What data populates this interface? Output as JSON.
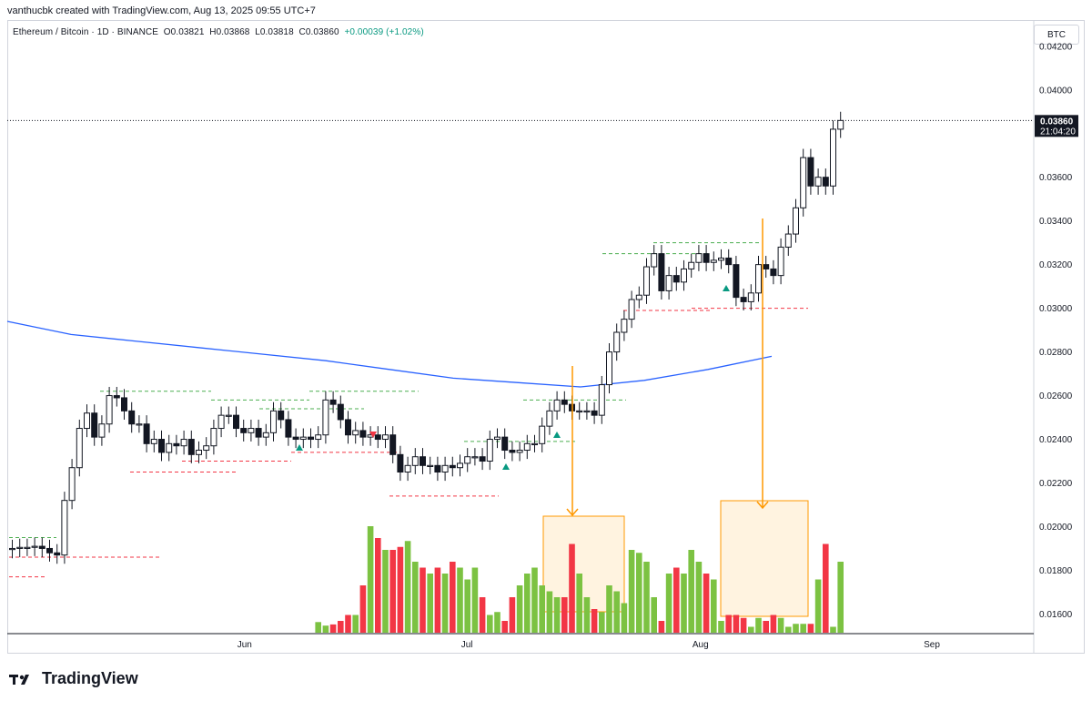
{
  "attribution": "vanthucbk created with TradingView.com, Aug 13, 2025 09:55 UTC+7",
  "legend": {
    "symbol": "Ethereum / Bitcoin · 1D · BINANCE",
    "open": "O0.03821",
    "high": "H0.03868",
    "low": "L0.03818",
    "close": "C0.03860",
    "change": "+0.00039 (+1.02%)"
  },
  "currency": "BTC",
  "brand": {
    "name": "TradingView",
    "icon": "tradingview-logo-icon"
  },
  "last_price": {
    "value": "0.03860",
    "countdown": "21:04:20"
  },
  "colors": {
    "up": "#089981",
    "down": "#131722",
    "vol_up": "#7cc242",
    "vol_down": "#f23645",
    "ma": "#2962ff",
    "arrow": "#ff9800",
    "support": "#f23645",
    "resistance": "#4caf50"
  },
  "chart_data": {
    "type": "candlestick",
    "symbol": "ETHBTC",
    "interval": "1D",
    "y_axis": {
      "ticks": [
        "0.04200",
        "0.04000",
        "0.03800",
        "0.03600",
        "0.03400",
        "0.03200",
        "0.03000",
        "0.02800",
        "0.02600",
        "0.02400",
        "0.02200",
        "0.02000",
        "0.01800",
        "0.01600"
      ],
      "ylim": [
        0.0151,
        0.0432
      ]
    },
    "x_axis": {
      "ticks": [
        "Jun",
        "Jul",
        "Aug",
        "Sep"
      ],
      "tick_day_index": [
        31,
        61,
        92,
        123
      ]
    },
    "candles_close": [
      0.019,
      0.01905,
      0.01905,
      0.0191,
      0.019,
      0.0188,
      0.0187,
      0.0212,
      0.0227,
      0.0245,
      0.0252,
      0.0241,
      0.0247,
      0.026,
      0.0259,
      0.0253,
      0.0247,
      0.0247,
      0.0238,
      0.024,
      0.0234,
      0.0238,
      0.0237,
      0.024,
      0.0233,
      0.0235,
      0.0237,
      0.0245,
      0.0251,
      0.0251,
      0.0245,
      0.0243,
      0.0245,
      0.0241,
      0.0243,
      0.0253,
      0.0249,
      0.0241,
      0.024,
      0.0241,
      0.024,
      0.0242,
      0.0258,
      0.0256,
      0.0249,
      0.0242,
      0.0244,
      0.0241,
      0.0242,
      0.024,
      0.0242,
      0.0233,
      0.0225,
      0.0228,
      0.0232,
      0.0228,
      0.0228,
      0.0225,
      0.0228,
      0.0227,
      0.0229,
      0.0232,
      0.0232,
      0.023,
      0.024,
      0.0241,
      0.0235,
      0.0234,
      0.0235,
      0.0238,
      0.0238,
      0.0246,
      0.0253,
      0.0258,
      0.0256,
      0.0253,
      0.0253,
      0.0253,
      0.0251,
      0.0265,
      0.028,
      0.0289,
      0.0295,
      0.0304,
      0.0306,
      0.0319,
      0.0325,
      0.0308,
      0.0315,
      0.0312,
      0.0318,
      0.0321,
      0.0325,
      0.0321,
      0.0322,
      0.0323,
      0.032,
      0.0305,
      0.0303,
      0.0307,
      0.032,
      0.0318,
      0.0315,
      0.0328,
      0.0334,
      0.0346,
      0.0369,
      0.0356,
      0.036,
      0.0356,
      0.0382,
      0.0386
    ],
    "last_close": 0.0386,
    "volume": {
      "relative_heights": [
        18,
        12,
        14,
        20,
        30,
        30,
        80,
        180,
        160,
        140,
        140,
        145,
        155,
        120,
        110,
        100,
        110,
        100,
        120,
        110,
        90,
        110,
        60,
        30,
        35,
        20,
        60,
        80,
        100,
        110,
        80,
        70,
        60,
        60,
        150,
        100,
        60,
        40,
        35,
        80,
        70,
        50,
        140,
        135,
        120,
        60,
        20,
        100,
        110,
        100,
        140,
        120,
        100,
        90,
        20,
        30,
        30,
        25,
        10,
        25,
        20,
        30,
        25,
        10,
        15,
        15,
        15,
        90,
        150,
        10,
        120
      ],
      "highlight_boxes": 2
    },
    "moving_average": {
      "color": "#2962ff",
      "points_price": [
        0.0294,
        0.0288,
        0.0285,
        0.0282,
        0.0279,
        0.0276,
        0.0272,
        0.0268,
        0.0266,
        0.0264,
        0.0267,
        0.0272,
        0.0278
      ]
    }
  }
}
